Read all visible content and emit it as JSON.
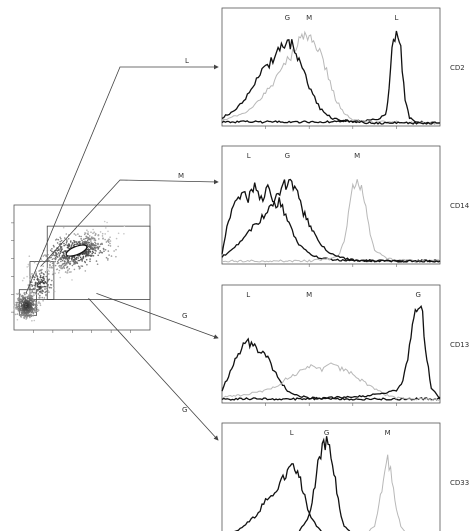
{
  "chart_data": [
    {
      "type": "scatter",
      "panel": "light-scatter",
      "xlim": [
        0,
        1023
      ],
      "ylim": [
        0,
        1023
      ],
      "gates": [
        {
          "name": "L",
          "x": [
            40,
            170
          ],
          "y": [
            120,
            330
          ]
        },
        {
          "name": "M",
          "x": [
            120,
            300
          ],
          "y": [
            250,
            560
          ]
        },
        {
          "name": "G",
          "x": [
            250,
            1023
          ],
          "y": [
            250,
            850
          ]
        }
      ],
      "populations": [
        {
          "name": "L",
          "x": 95,
          "y": 200,
          "spread_x": 40,
          "spread_y": 50,
          "count": 420
        },
        {
          "name": "M",
          "x": 200,
          "y": 380,
          "spread_x": 45,
          "spread_y": 60,
          "count": 160
        },
        {
          "name": "G",
          "x": 470,
          "y": 640,
          "spread_x": 130,
          "spread_y": 70,
          "count": 650
        }
      ]
    },
    {
      "type": "line",
      "panel": "histogram-cd2",
      "label": "CD2",
      "xlim": [
        0,
        1000
      ],
      "ylim": [
        0,
        100
      ],
      "series": [
        {
          "name": "L",
          "x": [
            0,
            100,
            200,
            300,
            400,
            450,
            500,
            550,
            600,
            650,
            700,
            750,
            760,
            780,
            800,
            820,
            840,
            860,
            880,
            900,
            950,
            1000
          ],
          "values": [
            2,
            2,
            2,
            2,
            2,
            2,
            2,
            3,
            3,
            3,
            4,
            8,
            20,
            70,
            95,
            70,
            25,
            6,
            3,
            2,
            1,
            1
          ]
        },
        {
          "name": "M",
          "x": [
            0,
            100,
            150,
            200,
            250,
            300,
            340,
            360,
            380,
            400,
            420,
            440,
            480,
            520,
            560,
            600,
            700,
            800,
            900,
            1000
          ],
          "values": [
            4,
            10,
            18,
            30,
            45,
            60,
            72,
            80,
            85,
            88,
            83,
            75,
            50,
            25,
            10,
            4,
            2,
            2,
            1,
            1
          ],
          "color": "#b8b8b8"
        },
        {
          "name": "G",
          "x": [
            0,
            50,
            100,
            150,
            200,
            250,
            280,
            300,
            320,
            340,
            360,
            400,
            450,
            500,
            550,
            600,
            700,
            800,
            900,
            1000
          ],
          "values": [
            6,
            12,
            22,
            38,
            55,
            68,
            75,
            78,
            75,
            68,
            58,
            35,
            15,
            6,
            3,
            2,
            1,
            1,
            1,
            1
          ]
        }
      ]
    },
    {
      "type": "line",
      "panel": "histogram-cd14",
      "label": "CD14",
      "xlim": [
        0,
        1000
      ],
      "ylim": [
        0,
        100
      ],
      "series": [
        {
          "name": "L",
          "x": [
            0,
            30,
            60,
            90,
            120,
            150,
            180,
            210,
            240,
            270,
            300,
            330,
            360,
            400,
            450,
            500,
            600,
            700,
            800,
            900,
            1000
          ],
          "values": [
            8,
            40,
            55,
            70,
            60,
            78,
            62,
            70,
            55,
            58,
            40,
            25,
            15,
            8,
            4,
            2,
            1,
            1,
            1,
            1,
            1
          ]
        },
        {
          "name": "M",
          "x": [
            0,
            300,
            400,
            500,
            540,
            560,
            580,
            600,
            620,
            640,
            660,
            680,
            700,
            750,
            800,
            900,
            1000
          ],
          "values": [
            1,
            1,
            1,
            3,
            8,
            20,
            45,
            70,
            80,
            72,
            50,
            25,
            12,
            4,
            2,
            1,
            1
          ],
          "color": "#b8b8b8"
        },
        {
          "name": "G",
          "x": [
            0,
            50,
            100,
            150,
            200,
            250,
            280,
            300,
            320,
            340,
            360,
            380,
            400,
            420,
            440,
            460,
            500,
            550,
            600,
            700,
            800,
            1000
          ],
          "values": [
            5,
            12,
            22,
            35,
            48,
            62,
            72,
            78,
            75,
            68,
            55,
            45,
            35,
            28,
            22,
            15,
            8,
            4,
            2,
            1,
            1,
            1
          ]
        }
      ]
    },
    {
      "type": "line",
      "panel": "histogram-cd13",
      "label": "CD13",
      "xlim": [
        0,
        1000
      ],
      "ylim": [
        0,
        100
      ],
      "series": [
        {
          "name": "L",
          "x": [
            0,
            30,
            60,
            90,
            120,
            150,
            180,
            210,
            240,
            270,
            300,
            350,
            400,
            500,
            600,
            700,
            800,
            900,
            1000
          ],
          "values": [
            10,
            25,
            40,
            50,
            55,
            52,
            48,
            40,
            28,
            18,
            10,
            5,
            3,
            2,
            2,
            2,
            2,
            2,
            2
          ]
        },
        {
          "name": "M",
          "x": [
            0,
            100,
            200,
            250,
            300,
            350,
            400,
            450,
            500,
            550,
            600,
            650,
            700,
            750,
            800,
            900,
            1000
          ],
          "values": [
            4,
            6,
            10,
            14,
            22,
            28,
            35,
            30,
            34,
            30,
            26,
            18,
            12,
            6,
            3,
            2,
            1
          ],
          "color": "#b8b8b8"
        },
        {
          "name": "G",
          "x": [
            0,
            200,
            400,
            600,
            700,
            750,
            800,
            830,
            860,
            880,
            900,
            920,
            940,
            960,
            1000
          ],
          "values": [
            2,
            2,
            2,
            4,
            6,
            8,
            10,
            20,
            50,
            80,
            92,
            80,
            40,
            12,
            3
          ]
        }
      ]
    },
    {
      "type": "line",
      "panel": "histogram-cd33",
      "label": "CD33",
      "xlim": [
        0,
        1000
      ],
      "ylim": [
        0,
        100
      ],
      "series": [
        {
          "name": "L",
          "x": [
            0,
            50,
            100,
            150,
            200,
            250,
            280,
            300,
            320,
            340,
            360,
            380,
            400,
            450,
            500,
            600,
            700,
            800,
            1000
          ],
          "values": [
            2,
            6,
            12,
            22,
            36,
            50,
            58,
            65,
            68,
            64,
            55,
            40,
            24,
            8,
            3,
            1,
            1,
            1,
            1
          ]
        },
        {
          "name": "G",
          "x": [
            0,
            200,
            300,
            350,
            400,
            420,
            440,
            460,
            480,
            500,
            520,
            540,
            560,
            600,
            700,
            800,
            1000
          ],
          "values": [
            1,
            1,
            2,
            6,
            22,
            45,
            72,
            88,
            92,
            80,
            55,
            28,
            12,
            4,
            2,
            1,
            1
          ]
        },
        {
          "name": "M",
          "x": [
            0,
            500,
            600,
            650,
            700,
            720,
            740,
            760,
            780,
            800,
            820,
            850,
            900,
            1000
          ],
          "values": [
            1,
            1,
            1,
            3,
            12,
            32,
            58,
            75,
            60,
            30,
            12,
            3,
            1,
            1
          ],
          "color": "#b8b8b8"
        }
      ]
    }
  ]
}
